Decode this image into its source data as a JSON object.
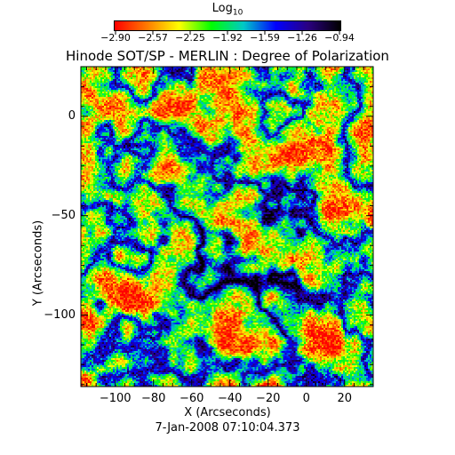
{
  "chart_data": {
    "type": "heatmap",
    "title": "Hinode SOT/SP - MERLIN : Degree of Polarization",
    "colorbar": {
      "label": "Log",
      "label_sub": "10",
      "ticks": [
        "−2.90",
        "−2.57",
        "−2.25",
        "−1.92",
        "−1.59",
        "−1.26",
        "−0.94"
      ],
      "range": [
        -2.9,
        -0.94
      ],
      "colormap": [
        "#ff0000",
        "#ff7a00",
        "#ffff00",
        "#00ff00",
        "#00c8c8",
        "#0000ff",
        "#2a0080",
        "#000000"
      ]
    },
    "xlabel": "X (Arcseconds)",
    "ylabel": "Y (Arcseconds)",
    "xlim": [
      -118,
      35
    ],
    "ylim": [
      -136,
      25
    ],
    "xticks": [
      -100,
      -80,
      -60,
      -40,
      -20,
      0,
      20
    ],
    "yticks": [
      0,
      -50,
      -100
    ],
    "timestamp": "7-Jan-2008 07:10:04.373"
  }
}
